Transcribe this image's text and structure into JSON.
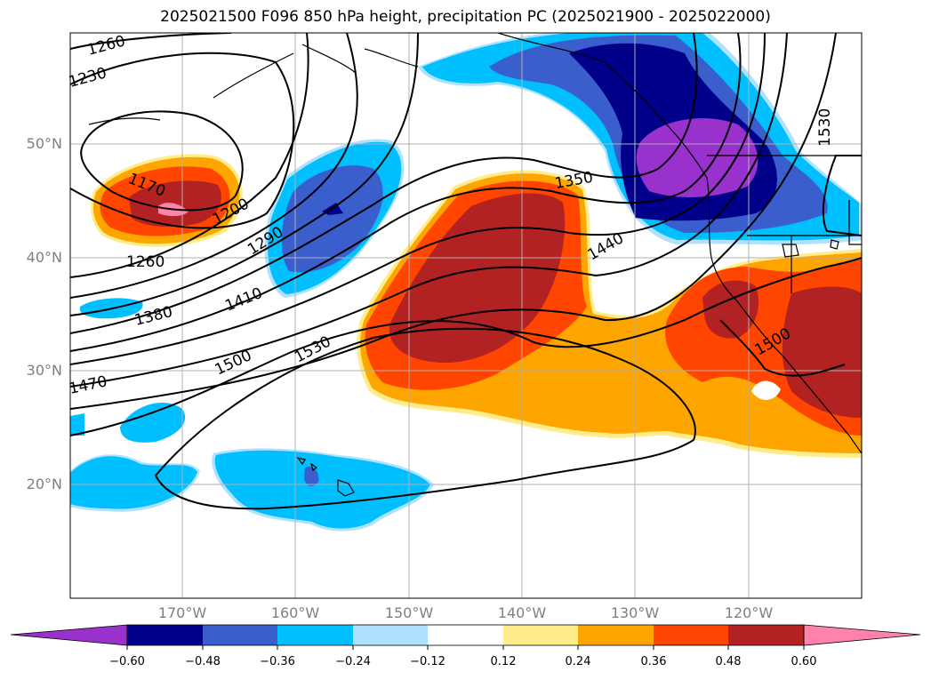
{
  "title": "2025021500 F096 850 hPa height, precipitation PC (2025021900 - 2025022000)",
  "map": {
    "lat_labels": [
      "50°N",
      "40°N",
      "30°N",
      "20°N"
    ],
    "lon_labels": [
      "170°W",
      "160°W",
      "150°W",
      "140°W",
      "130°W",
      "120°W"
    ],
    "contour_labels": [
      "1260",
      "1230",
      "1170",
      "1200",
      "1260",
      "1290",
      "1350",
      "1380",
      "1410",
      "1440",
      "1470",
      "1500",
      "1530",
      "1500",
      "1530"
    ]
  },
  "colorbar": {
    "ticks": [
      "−0.60",
      "−0.48",
      "−0.36",
      "−0.24",
      "−0.12",
      "0.12",
      "0.24",
      "0.36",
      "0.48",
      "0.60"
    ],
    "colors": [
      "#9932cc",
      "#00008b",
      "#3a5fcd",
      "#00bfff",
      "#b0e2ff",
      "#ffffff",
      "#ffec8b",
      "#ffa500",
      "#ff4500",
      "#b22222",
      "#ff82ab"
    ]
  }
}
